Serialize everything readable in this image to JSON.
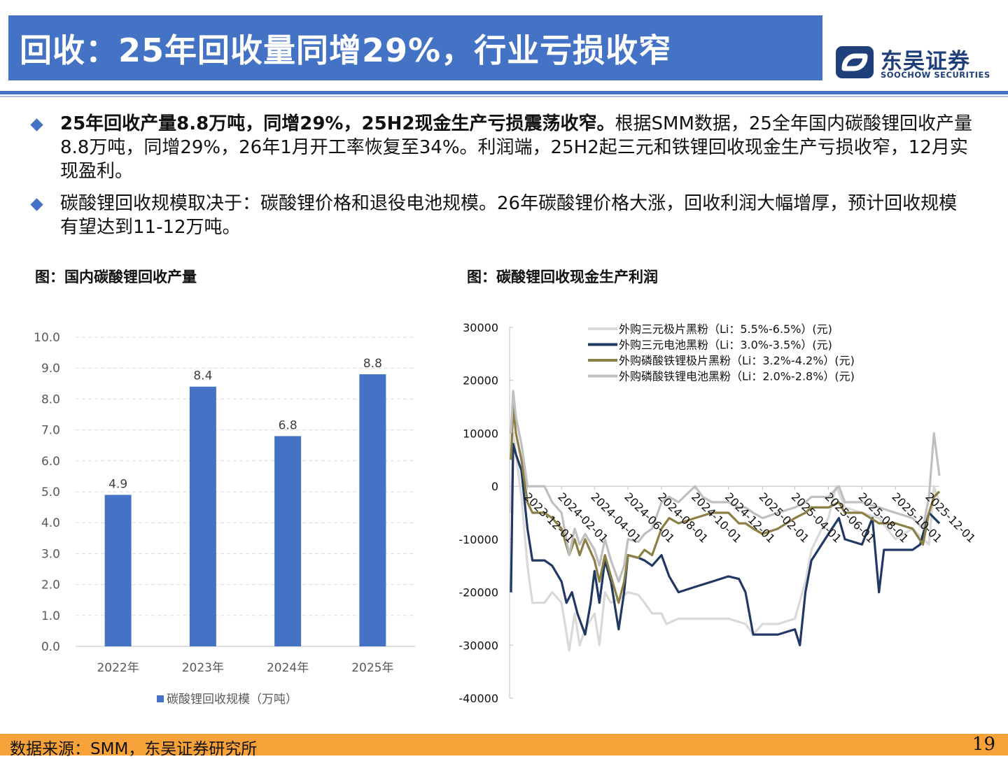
{
  "header": {
    "title": "回收：25年回收量同增29%，行业亏损收窄",
    "logo_name": "东吴证券",
    "logo_en": "SOOCHOW SECURITIES",
    "accent": "#4472c4"
  },
  "bullets": [
    {
      "bold": "25年回收产量8.8万吨，同增29%，25H2现金生产亏损震荡收窄。",
      "text": "根据SMM数据，25全年国内碳酸锂回收产量8.8万吨，同增29%，26年1月开工率恢复至34%。利润端，25H2起三元和铁锂回收现金生产亏损收窄，12月实现盈利。"
    },
    {
      "bold": "",
      "text": "碳酸锂回收规模取决于：碳酸锂价格和退役电池规模。26年碳酸锂价格大涨，回收利润大幅增厚，预计回收规模有望达到11-12万吨。"
    }
  ],
  "figures": {
    "left_title": "图：国内碳酸锂回收产量",
    "right_title": "图：碳酸锂回收现金生产利润"
  },
  "chart_data": [
    {
      "type": "bar",
      "title": "图：国内碳酸锂回收产量",
      "categories": [
        "2022年",
        "2023年",
        "2024年",
        "2025年"
      ],
      "series": [
        {
          "name": "碳酸锂回收规模（万吨）",
          "values": [
            4.9,
            8.4,
            6.8,
            8.8
          ],
          "color": "#4472c4"
        }
      ],
      "ylim": [
        0,
        10
      ],
      "yticks": [
        "0.0",
        "1.0",
        "2.0",
        "3.0",
        "4.0",
        "5.0",
        "6.0",
        "7.0",
        "8.0",
        "9.0",
        "10.0"
      ],
      "data_labels": [
        "4.9",
        "8.4",
        "6.8",
        "8.8"
      ],
      "grid": true,
      "legend": "bottom"
    },
    {
      "type": "line",
      "title": "图：碳酸锂回收现金生产利润",
      "ylim": [
        -40000,
        30000
      ],
      "yticks": [
        "30000",
        "20000",
        "10000",
        "0",
        "-10000",
        "-20000",
        "-30000",
        "-40000"
      ],
      "xticks": [
        "2023-12-01",
        "2024-02-01",
        "2024-04-01",
        "2024-06-01",
        "2024-08-01",
        "2024-10-01",
        "2024-12-01",
        "2025-02-01",
        "2025-04-01",
        "2025-06-01",
        "2025-08-01",
        "2025-10-01",
        "2025-12-01"
      ],
      "legend": "top",
      "series": [
        {
          "name": "外购三元极片黑粉（Li：5.5%-6.5%）(元)",
          "color": "#d9d9d9",
          "points": [
            [
              "2023-11-01",
              -5000
            ],
            [
              "2023-11-05",
              10000
            ],
            [
              "2023-11-10",
              6000
            ],
            [
              "2023-11-20",
              -2000
            ],
            [
              "2023-12-01",
              -15000
            ],
            [
              "2023-12-10",
              -22000
            ],
            [
              "2024-01-01",
              -22000
            ],
            [
              "2024-01-15",
              -20000
            ],
            [
              "2024-02-01",
              -22000
            ],
            [
              "2024-02-15",
              -31000
            ],
            [
              "2024-02-25",
              -24000
            ],
            [
              "2024-03-05",
              -30000
            ],
            [
              "2024-03-15",
              -27000
            ],
            [
              "2024-04-01",
              -24000
            ],
            [
              "2024-04-10",
              -30000
            ],
            [
              "2024-04-20",
              -20000
            ],
            [
              "2024-05-01",
              -22000
            ],
            [
              "2024-05-20",
              -21000
            ],
            [
              "2024-06-01",
              -20000
            ],
            [
              "2024-06-20",
              -20500
            ],
            [
              "2024-07-01",
              -22000
            ],
            [
              "2024-07-15",
              -24000
            ],
            [
              "2024-08-01",
              -24000
            ],
            [
              "2024-08-10",
              -26000
            ],
            [
              "2024-09-01",
              -25000
            ],
            [
              "2024-10-01",
              -25000
            ],
            [
              "2024-11-01",
              -25000
            ],
            [
              "2024-12-01",
              -25000
            ],
            [
              "2025-01-01",
              -26000
            ],
            [
              "2025-01-15",
              -28000
            ],
            [
              "2025-02-01",
              -26000
            ],
            [
              "2025-03-01",
              -26000
            ],
            [
              "2025-04-01",
              -25000
            ],
            [
              "2025-04-20",
              -18000
            ],
            [
              "2025-05-01",
              -12000
            ],
            [
              "2025-05-20",
              -8000
            ],
            [
              "2025-06-01",
              -6000
            ],
            [
              "2025-06-15",
              0
            ],
            [
              "2025-07-01",
              -4000
            ],
            [
              "2025-08-01",
              -5000
            ],
            [
              "2025-09-01",
              -6000
            ],
            [
              "2025-10-01",
              -10000
            ],
            [
              "2025-11-01",
              -8000
            ],
            [
              "2025-12-01",
              -11000
            ],
            [
              "2025-12-10",
              0
            ],
            [
              "2025-12-20",
              -3000
            ]
          ]
        },
        {
          "name": "外购三元电池黑粉（Li：3.0%-3.5%）(元)",
          "color": "#1f3864",
          "points": [
            [
              "2023-11-01",
              -20000
            ],
            [
              "2023-11-05",
              8000
            ],
            [
              "2023-11-10",
              6000
            ],
            [
              "2023-11-20",
              3000
            ],
            [
              "2023-12-01",
              -8000
            ],
            [
              "2023-12-10",
              -14000
            ],
            [
              "2024-01-01",
              -14000
            ],
            [
              "2024-01-15",
              -15000
            ],
            [
              "2024-02-01",
              -18000
            ],
            [
              "2024-02-10",
              -22000
            ],
            [
              "2024-02-20",
              -20000
            ],
            [
              "2024-03-01",
              -24000
            ],
            [
              "2024-03-15",
              -28000
            ],
            [
              "2024-03-25",
              -22000
            ],
            [
              "2024-04-01",
              -16000
            ],
            [
              "2024-04-10",
              -22000
            ],
            [
              "2024-04-20",
              -14000
            ],
            [
              "2024-05-01",
              -18000
            ],
            [
              "2024-05-15",
              -27000
            ],
            [
              "2024-05-25",
              -20000
            ],
            [
              "2024-06-01",
              -13000
            ],
            [
              "2024-06-20",
              -13500
            ],
            [
              "2024-07-01",
              -14000
            ],
            [
              "2024-07-15",
              -15000
            ],
            [
              "2024-08-01",
              -13000
            ],
            [
              "2024-08-15",
              -17000
            ],
            [
              "2024-09-01",
              -20000
            ],
            [
              "2024-10-01",
              -19000
            ],
            [
              "2024-11-01",
              -18000
            ],
            [
              "2024-12-01",
              -17000
            ],
            [
              "2024-12-20",
              -17500
            ],
            [
              "2025-01-01",
              -20000
            ],
            [
              "2025-01-15",
              -28000
            ],
            [
              "2025-02-01",
              -28000
            ],
            [
              "2025-03-01",
              -28000
            ],
            [
              "2025-04-01",
              -27000
            ],
            [
              "2025-04-10",
              -30000
            ],
            [
              "2025-04-20",
              -20000
            ],
            [
              "2025-05-01",
              -14000
            ],
            [
              "2025-06-01",
              -9000
            ],
            [
              "2025-06-20",
              -6000
            ],
            [
              "2025-07-01",
              -10000
            ],
            [
              "2025-08-01",
              -11000
            ],
            [
              "2025-08-20",
              -6000
            ],
            [
              "2025-09-01",
              -20000
            ],
            [
              "2025-09-10",
              -12000
            ],
            [
              "2025-10-01",
              -12000
            ],
            [
              "2025-11-01",
              -12000
            ],
            [
              "2025-11-15",
              -11000
            ],
            [
              "2025-12-01",
              -5000
            ],
            [
              "2025-12-20",
              -7000
            ]
          ]
        },
        {
          "name": "外购磷酸铁锂极片黑粉（Li：3.2%-4.2%）(元)",
          "color": "#8c7f45",
          "points": [
            [
              "2023-11-01",
              5000
            ],
            [
              "2023-11-05",
              15000
            ],
            [
              "2023-11-10",
              10000
            ],
            [
              "2023-11-20",
              5000
            ],
            [
              "2023-12-01",
              -3000
            ],
            [
              "2023-12-10",
              -5000
            ],
            [
              "2024-01-01",
              -5000
            ],
            [
              "2024-01-15",
              -6000
            ],
            [
              "2024-02-01",
              -8000
            ],
            [
              "2024-02-15",
              -13000
            ],
            [
              "2024-02-25",
              -10000
            ],
            [
              "2024-03-05",
              -13000
            ],
            [
              "2024-03-15",
              -10000
            ],
            [
              "2024-04-01",
              -14000
            ],
            [
              "2024-04-10",
              -18000
            ],
            [
              "2024-04-20",
              -13000
            ],
            [
              "2024-05-01",
              -17000
            ],
            [
              "2024-05-15",
              -22000
            ],
            [
              "2024-05-25",
              -18000
            ],
            [
              "2024-06-01",
              -13000
            ],
            [
              "2024-06-20",
              -13500
            ],
            [
              "2024-07-01",
              -12000
            ],
            [
              "2024-07-15",
              -13000
            ],
            [
              "2024-08-01",
              -8000
            ],
            [
              "2024-08-15",
              -6000
            ],
            [
              "2024-09-01",
              -7000
            ],
            [
              "2024-10-01",
              -6000
            ],
            [
              "2024-11-01",
              -5000
            ],
            [
              "2024-12-01",
              -5000
            ],
            [
              "2024-12-20",
              -7000
            ],
            [
              "2025-01-01",
              -7000
            ],
            [
              "2025-01-15",
              -8000
            ],
            [
              "2025-02-01",
              -9000
            ],
            [
              "2025-03-01",
              -8000
            ],
            [
              "2025-04-01",
              -6000
            ],
            [
              "2025-04-20",
              -5000
            ],
            [
              "2025-05-01",
              -4000
            ],
            [
              "2025-06-01",
              -4000
            ],
            [
              "2025-06-20",
              -3000
            ],
            [
              "2025-07-01",
              -5000
            ],
            [
              "2025-08-01",
              -5000
            ],
            [
              "2025-09-01",
              -7000
            ],
            [
              "2025-10-01",
              -7000
            ],
            [
              "2025-11-01",
              -8000
            ],
            [
              "2025-11-20",
              -11000
            ],
            [
              "2025-12-01",
              -5000
            ],
            [
              "2025-12-10",
              -2000
            ],
            [
              "2025-12-20",
              -1000
            ]
          ]
        },
        {
          "name": "外购磷酸铁锂电池黑粉（Li：2.0%-2.8%）(元)",
          "color": "#bfbfbf",
          "points": [
            [
              "2023-11-01",
              10000
            ],
            [
              "2023-11-05",
              18000
            ],
            [
              "2023-11-10",
              13000
            ],
            [
              "2023-11-20",
              8000
            ],
            [
              "2023-12-01",
              0
            ],
            [
              "2023-12-10",
              0
            ],
            [
              "2024-01-01",
              0
            ],
            [
              "2024-01-15",
              -3000
            ],
            [
              "2024-02-01",
              -5000
            ],
            [
              "2024-02-15",
              -13000
            ],
            [
              "2024-02-25",
              -8000
            ],
            [
              "2024-03-05",
              -11000
            ],
            [
              "2024-03-15",
              -9000
            ],
            [
              "2024-04-01",
              -12000
            ],
            [
              "2024-04-10",
              -15000
            ],
            [
              "2024-04-20",
              -10000
            ],
            [
              "2024-05-01",
              -14000
            ],
            [
              "2024-05-15",
              -18000
            ],
            [
              "2024-05-25",
              -15000
            ],
            [
              "2024-06-01",
              -10000
            ],
            [
              "2024-06-20",
              -10500
            ],
            [
              "2024-07-01",
              -9000
            ],
            [
              "2024-07-15",
              -8000
            ],
            [
              "2024-08-01",
              -3000
            ],
            [
              "2024-08-15",
              -2000
            ],
            [
              "2024-09-01",
              -3000
            ],
            [
              "2024-10-01",
              0
            ],
            [
              "2024-10-15",
              -2000
            ],
            [
              "2024-11-01",
              -3000
            ],
            [
              "2024-12-01",
              -3000
            ],
            [
              "2024-12-20",
              -4000
            ],
            [
              "2025-01-01",
              -4000
            ],
            [
              "2025-01-15",
              -5000
            ],
            [
              "2025-02-01",
              -6000
            ],
            [
              "2025-03-01",
              -5000
            ],
            [
              "2025-04-01",
              -4000
            ],
            [
              "2025-04-20",
              -3000
            ],
            [
              "2025-05-01",
              -2000
            ],
            [
              "2025-06-01",
              -2000
            ],
            [
              "2025-06-20",
              0
            ],
            [
              "2025-07-01",
              -3000
            ],
            [
              "2025-08-01",
              -3000
            ],
            [
              "2025-09-01",
              -4000
            ],
            [
              "2025-10-01",
              -5000
            ],
            [
              "2025-11-01",
              -6000
            ],
            [
              "2025-11-20",
              -8000
            ],
            [
              "2025-12-01",
              -2000
            ],
            [
              "2025-12-10",
              10000
            ],
            [
              "2025-12-20",
              2000
            ]
          ]
        }
      ]
    }
  ],
  "footer": {
    "source": "数据来源：SMM，东吴证券研究所",
    "page": "19",
    "color": "#f7a239"
  }
}
